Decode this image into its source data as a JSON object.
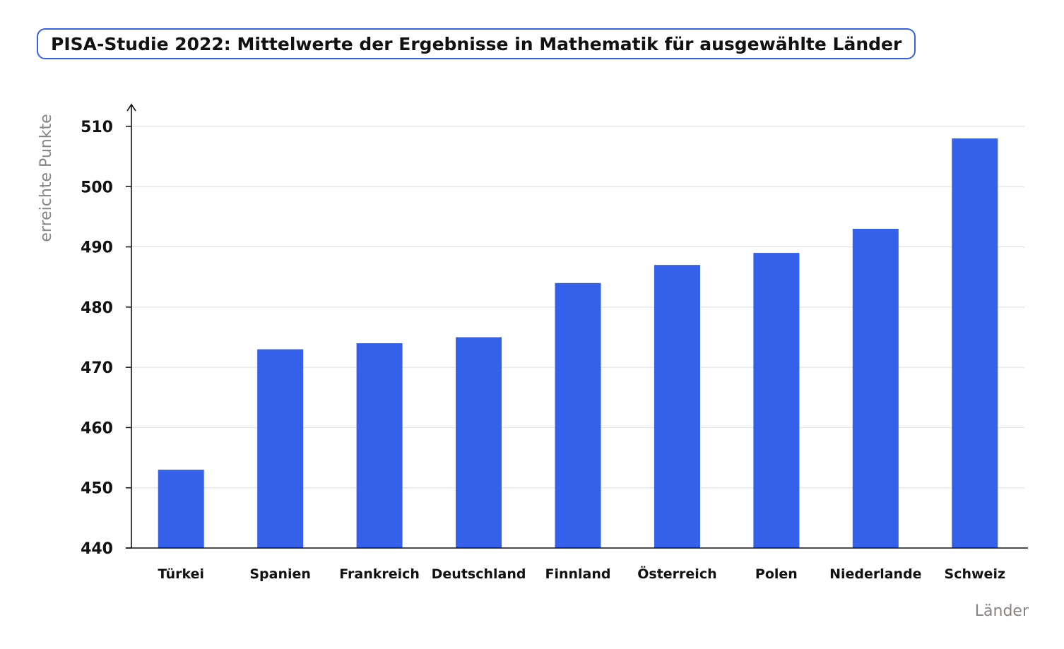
{
  "chart_data": {
    "type": "bar",
    "title": "PISA-Studie 2022: Mittelwerte der Ergebnisse in Mathematik für ausgewählte Länder",
    "xlabel": "Länder",
    "ylabel": "erreichte Punkte",
    "categories": [
      "Türkei",
      "Spanien",
      "Frankreich",
      "Deutschland",
      "Finnland",
      "Österreich",
      "Polen",
      "Niederlande",
      "Schweiz"
    ],
    "values": [
      453,
      473,
      474,
      475,
      484,
      487,
      489,
      493,
      508
    ],
    "ylim": [
      440,
      510
    ],
    "yticks": [
      440,
      450,
      460,
      470,
      480,
      490,
      500,
      510
    ],
    "grid": true,
    "colors": {
      "bar": "#3560ea",
      "grid": "#dddddd",
      "axis": "#111111",
      "title_border": "#3560ea"
    }
  }
}
